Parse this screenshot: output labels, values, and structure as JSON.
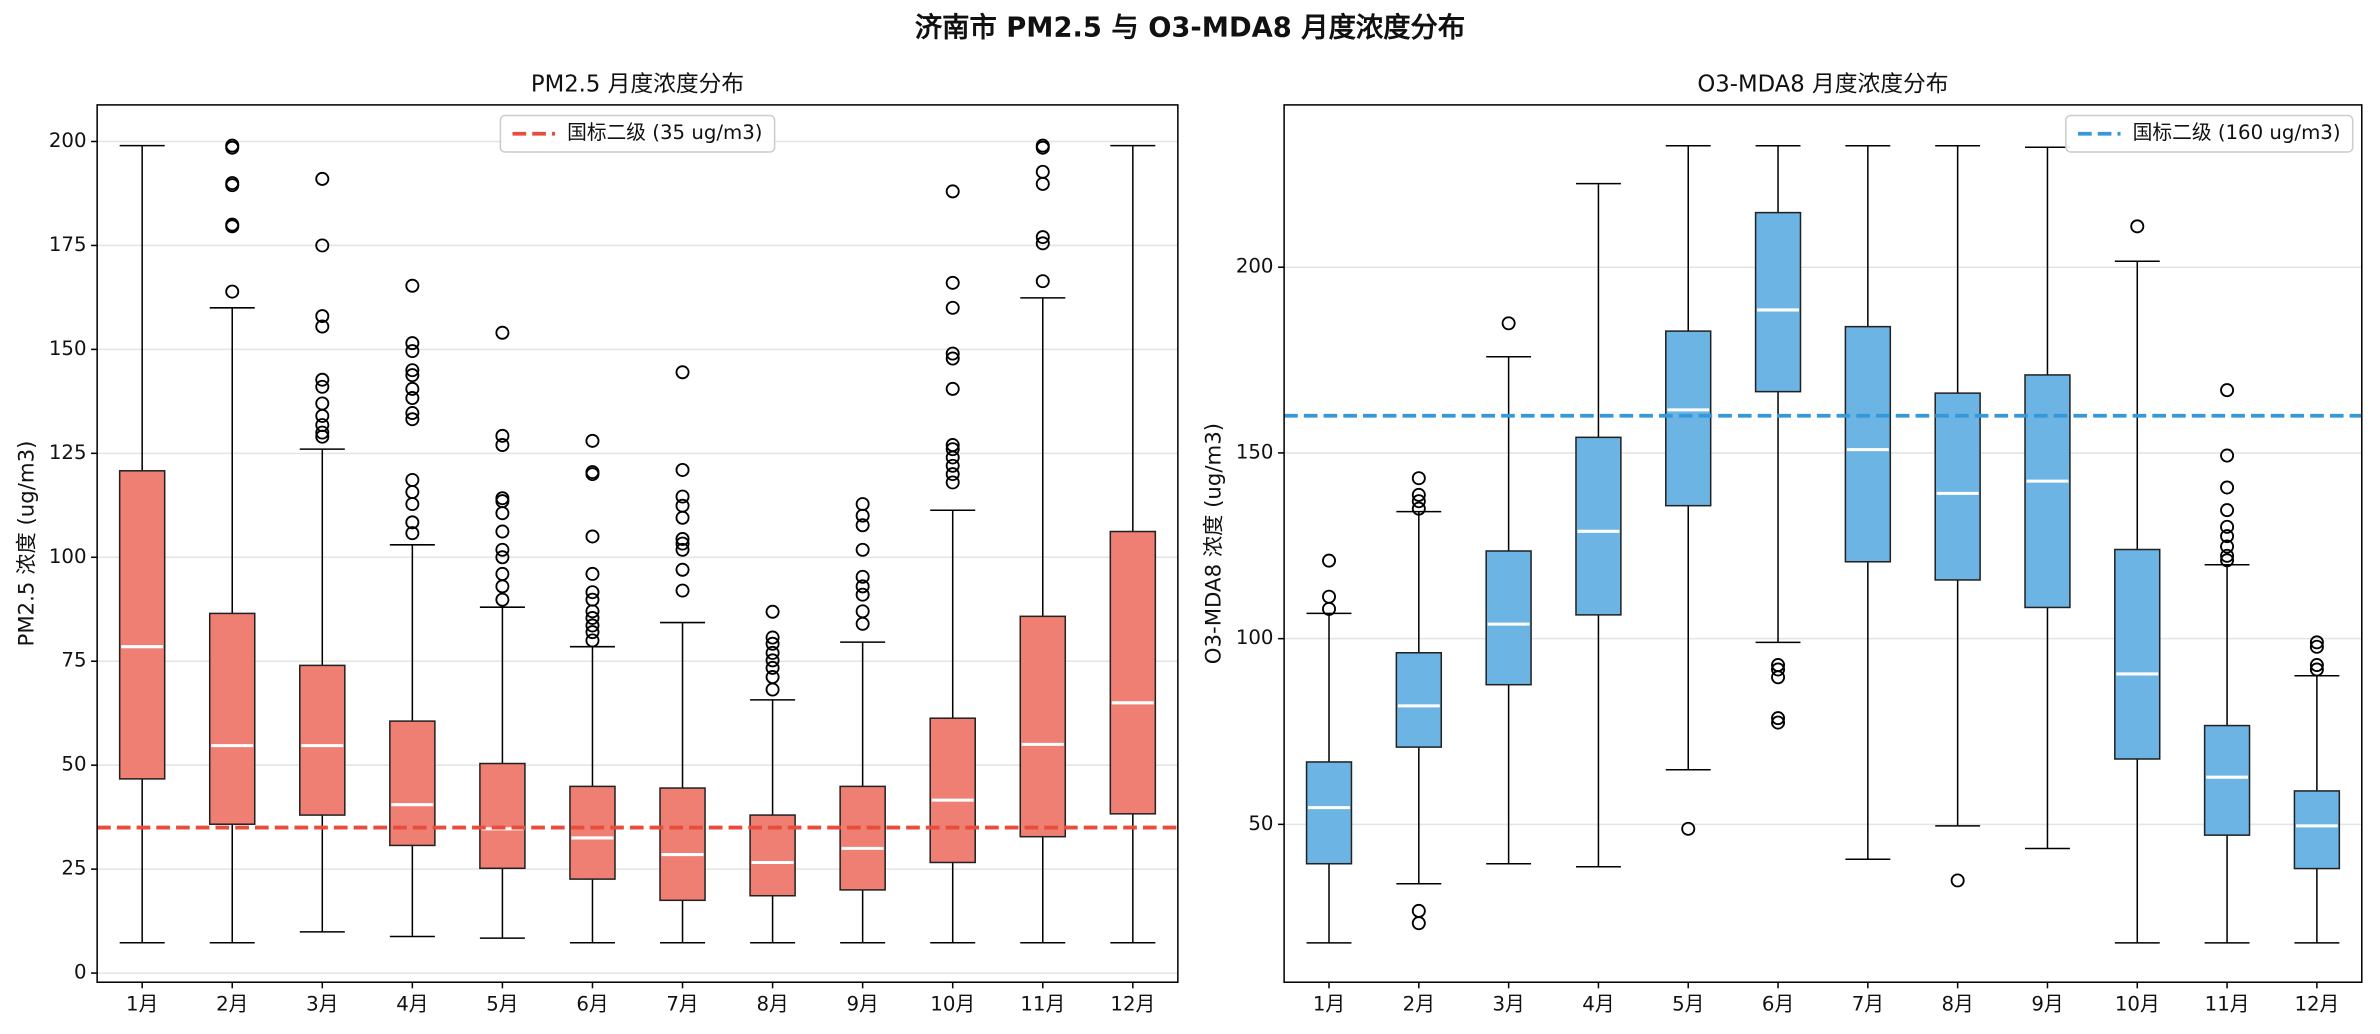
{
  "title": "济南市 PM2.5 与 O3-MDA8 月度浓度分布",
  "chart_data": [
    {
      "type": "box",
      "title": "PM2.5 月度浓度分布",
      "ylabel": "PM2.5 浓度 (ug/m3)",
      "categories": [
        "1月",
        "2月",
        "3月",
        "4月",
        "5月",
        "6月",
        "7月",
        "8月",
        "9月",
        "10月",
        "11月",
        "12月"
      ],
      "color": "#ee7f72",
      "median_color": "#ffffff",
      "boxes": [
        {
          "whislo": 7.3,
          "q1": 46.7,
          "med": 78.5,
          "q3": 120.8,
          "whishi": 199,
          "fliers": []
        },
        {
          "whislo": 7.3,
          "q1": 35.8,
          "med": 54.7,
          "q3": 86.5,
          "whishi": 160,
          "fliers": [
            199,
            198.5,
            190,
            189.5,
            180,
            179.6,
            163.9
          ]
        },
        {
          "whislo": 9.9,
          "q1": 38,
          "med": 54.7,
          "q3": 74,
          "whishi": 126,
          "fliers": [
            191,
            175,
            158,
            155.5,
            142.7,
            141,
            137,
            134,
            131.8,
            130,
            129
          ]
        },
        {
          "whislo": 8.8,
          "q1": 30.7,
          "med": 40.5,
          "q3": 60.6,
          "whishi": 103,
          "fliers": [
            165.3,
            151.5,
            149.6,
            145,
            143.8,
            140.5,
            138.3,
            134.7,
            133.2,
            118.6,
            115.7,
            112.8,
            108.4,
            105.8
          ]
        },
        {
          "whislo": 8.4,
          "q1": 25.2,
          "med": 34.7,
          "q3": 50.4,
          "whishi": 88,
          "fliers": [
            154,
            129.2,
            127,
            114.2,
            113.5,
            110.6,
            106.2,
            101.8,
            100,
            96,
            93,
            89.8
          ]
        },
        {
          "whislo": 7.3,
          "q1": 22.6,
          "med": 32.5,
          "q3": 44.9,
          "whishi": 78.5,
          "fliers": [
            128,
            120.5,
            120,
            105,
            96,
            91.6,
            89.8,
            87,
            85.4,
            83.6,
            82,
            80
          ]
        },
        {
          "whislo": 7.3,
          "q1": 17.5,
          "med": 28.5,
          "q3": 44.5,
          "whishi": 84.3,
          "fliers": [
            144.5,
            121,
            114.6,
            112.4,
            109.5,
            104.4,
            103.3,
            101.8,
            97,
            92
          ]
        },
        {
          "whislo": 7.3,
          "q1": 18.6,
          "med": 26.6,
          "q3": 38,
          "whishi": 65.7,
          "fliers": [
            86.9,
            80.7,
            79.2,
            77,
            75.2,
            73.4,
            71.2,
            68.2
          ]
        },
        {
          "whislo": 7.3,
          "q1": 20,
          "med": 30,
          "q3": 44.9,
          "whishi": 79.6,
          "fliers": [
            112.8,
            110,
            107.7,
            101.8,
            95.3,
            93,
            91,
            87,
            84
          ]
        },
        {
          "whislo": 7.3,
          "q1": 26.6,
          "med": 41.6,
          "q3": 61.3,
          "whishi": 111.3,
          "fliers": [
            188,
            166,
            160,
            149,
            147.8,
            140.5,
            127,
            126,
            124,
            122,
            120,
            118
          ]
        },
        {
          "whislo": 7.3,
          "q1": 32.8,
          "med": 55,
          "q3": 85.8,
          "whishi": 162.4,
          "fliers": [
            199,
            198.5,
            192.7,
            189.8,
            177,
            175.5,
            166.4
          ]
        },
        {
          "whislo": 7.3,
          "q1": 38.3,
          "med": 65,
          "q3": 106.2,
          "whishi": 199,
          "fliers": []
        }
      ],
      "ylim": [
        -2.2,
        208.8
      ],
      "yticks": [
        0,
        25,
        50,
        75,
        100,
        125,
        150,
        175,
        200
      ],
      "grid": true,
      "reference_line": {
        "value": 35,
        "label": "国标二级 (35 ug/m3)",
        "color": "#e74c3c"
      },
      "legend": "upper center"
    },
    {
      "type": "box",
      "title": "O3-MDA8 月度浓度分布",
      "ylabel": "O3-MDA8 浓度 (ug/m3)",
      "categories": [
        "1月",
        "2月",
        "3月",
        "4月",
        "5月",
        "6月",
        "7月",
        "8月",
        "9月",
        "10月",
        "11月",
        "12月"
      ],
      "color": "#6cb4e4",
      "median_color": "#ffffff",
      "boxes": [
        {
          "whislo": 18.1,
          "q1": 39.4,
          "med": 54.5,
          "q3": 66.8,
          "whishi": 106.8,
          "fliers": [
            121,
            111.3,
            108
          ]
        },
        {
          "whislo": 34,
          "q1": 70.8,
          "med": 81.9,
          "q3": 96.2,
          "whishi": 134.2,
          "fliers": [
            143.2,
            138.7,
            137,
            135,
            26.7,
            23.4
          ]
        },
        {
          "whislo": 39.4,
          "q1": 87.6,
          "med": 103.9,
          "q3": 123.6,
          "whishi": 175.9,
          "fliers": [
            184.9
          ]
        },
        {
          "whislo": 38.6,
          "q1": 106.4,
          "med": 128.9,
          "q3": 154.2,
          "whishi": 222.5,
          "fliers": []
        },
        {
          "whislo": 64.7,
          "q1": 135.8,
          "med": 161.6,
          "q3": 182.8,
          "whishi": 232.7,
          "fliers": [
            48.8
          ]
        },
        {
          "whislo": 99,
          "q1": 166.5,
          "med": 188.5,
          "q3": 214.7,
          "whishi": 232.7,
          "fliers": [
            92.9,
            91.7,
            89.6,
            78.6,
            77.4
          ]
        },
        {
          "whislo": 40.6,
          "q1": 120.7,
          "med": 150.9,
          "q3": 184,
          "whishi": 232.7,
          "fliers": []
        },
        {
          "whislo": 49.6,
          "q1": 115.8,
          "med": 139.1,
          "q3": 166.1,
          "whishi": 232.7,
          "fliers": [
            34.9
          ]
        },
        {
          "whislo": 43.5,
          "q1": 108.4,
          "med": 142.4,
          "q3": 171,
          "whishi": 232.3,
          "fliers": []
        },
        {
          "whislo": 18.1,
          "q1": 67.6,
          "med": 90.5,
          "q3": 124,
          "whishi": 201.6,
          "fliers": [
            211
          ]
        },
        {
          "whislo": 18.1,
          "q1": 47.1,
          "med": 62.7,
          "q3": 76.6,
          "whishi": 119.9,
          "fliers": [
            166.9,
            149.3,
            140.7,
            134.6,
            130.1,
            127.6,
            124.8,
            122.3,
            121.1
          ]
        },
        {
          "whislo": 18.1,
          "q1": 38.1,
          "med": 49.6,
          "q3": 59,
          "whishi": 90,
          "fliers": [
            99,
            97.8,
            92.9,
            91.7
          ]
        }
      ],
      "ylim": [
        7.5,
        243.7
      ],
      "yticks": [
        50,
        100,
        150,
        200
      ],
      "grid": true,
      "reference_line": {
        "value": 160,
        "label": "国标二级 (160 ug/m3)",
        "color": "#3498db"
      },
      "legend": "upper right"
    }
  ]
}
